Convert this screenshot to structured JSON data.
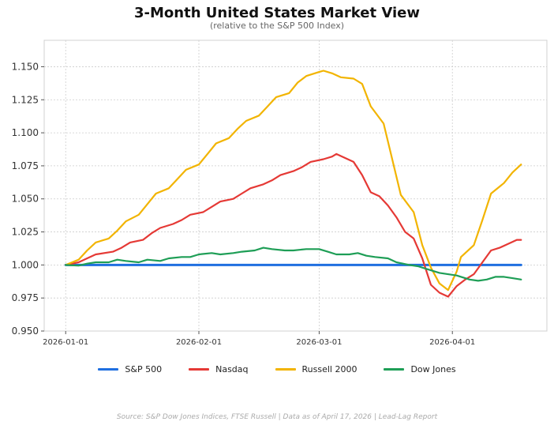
{
  "chart_data": {
    "type": "line",
    "title": "3-Month United States Market View",
    "subtitle": "(relative to the S&P 500 Index)",
    "xlabel": "",
    "ylabel": "",
    "x_start": "2026-01-01",
    "x_end": "2026-04-17",
    "xlim": [
      "2025-12-27",
      "2026-04-23"
    ],
    "ylim": [
      0.95,
      1.17
    ],
    "x_ticks": [
      "2026-01-01",
      "2026-02-01",
      "2026-03-01",
      "2026-04-01"
    ],
    "y_ticks": [
      0.95,
      0.975,
      1.0,
      1.025,
      1.05,
      1.075,
      1.1,
      1.125,
      1.15
    ],
    "y_tick_labels": [
      "0.950",
      "0.975",
      "1.000",
      "1.025",
      "1.050",
      "1.075",
      "1.100",
      "1.125",
      "1.150"
    ],
    "grid": true,
    "legend_position": "bottom-center",
    "series": [
      {
        "name": "S&P 500",
        "color": "#1f6fe0",
        "points": [
          [
            "2026-01-01",
            1.0
          ],
          [
            "2026-04-17",
            1.0
          ]
        ]
      },
      {
        "name": "Nasdaq",
        "color": "#e53935",
        "points": [
          [
            "2026-01-01",
            1.0
          ],
          [
            "2026-01-04",
            1.002
          ],
          [
            "2026-01-06",
            1.005
          ],
          [
            "2026-01-08",
            1.008
          ],
          [
            "2026-01-12",
            1.01
          ],
          [
            "2026-01-14",
            1.013
          ],
          [
            "2026-01-16",
            1.017
          ],
          [
            "2026-01-19",
            1.019
          ],
          [
            "2026-01-21",
            1.024
          ],
          [
            "2026-01-23",
            1.028
          ],
          [
            "2026-01-26",
            1.031
          ],
          [
            "2026-01-28",
            1.034
          ],
          [
            "2026-01-30",
            1.038
          ],
          [
            "2026-02-02",
            1.04
          ],
          [
            "2026-02-04",
            1.044
          ],
          [
            "2026-02-06",
            1.048
          ],
          [
            "2026-02-09",
            1.05
          ],
          [
            "2026-02-11",
            1.054
          ],
          [
            "2026-02-13",
            1.058
          ],
          [
            "2026-02-16",
            1.061
          ],
          [
            "2026-02-18",
            1.064
          ],
          [
            "2026-02-20",
            1.068
          ],
          [
            "2026-02-23",
            1.071
          ],
          [
            "2026-02-25",
            1.074
          ],
          [
            "2026-02-27",
            1.078
          ],
          [
            "2026-03-02",
            1.08
          ],
          [
            "2026-03-04",
            1.082
          ],
          [
            "2026-03-05",
            1.084
          ],
          [
            "2026-03-07",
            1.081
          ],
          [
            "2026-03-09",
            1.078
          ],
          [
            "2026-03-11",
            1.068
          ],
          [
            "2026-03-13",
            1.055
          ],
          [
            "2026-03-15",
            1.052
          ],
          [
            "2026-03-17",
            1.045
          ],
          [
            "2026-03-19",
            1.036
          ],
          [
            "2026-03-21",
            1.025
          ],
          [
            "2026-03-23",
            1.02
          ],
          [
            "2026-03-25",
            1.005
          ],
          [
            "2026-03-27",
            0.985
          ],
          [
            "2026-03-29",
            0.979
          ],
          [
            "2026-03-31",
            0.976
          ],
          [
            "2026-04-02",
            0.984
          ],
          [
            "2026-04-04",
            0.989
          ],
          [
            "2026-04-06",
            0.993
          ],
          [
            "2026-04-08",
            1.002
          ],
          [
            "2026-04-10",
            1.011
          ],
          [
            "2026-04-12",
            1.013
          ],
          [
            "2026-04-14",
            1.016
          ],
          [
            "2026-04-16",
            1.019
          ],
          [
            "2026-04-17",
            1.019
          ]
        ]
      },
      {
        "name": "Russell 2000",
        "color": "#f2b400",
        "points": [
          [
            "2026-01-01",
            1.0
          ],
          [
            "2026-01-04",
            1.004
          ],
          [
            "2026-01-06",
            1.011
          ],
          [
            "2026-01-08",
            1.017
          ],
          [
            "2026-01-11",
            1.02
          ],
          [
            "2026-01-13",
            1.026
          ],
          [
            "2026-01-15",
            1.033
          ],
          [
            "2026-01-18",
            1.038
          ],
          [
            "2026-01-20",
            1.046
          ],
          [
            "2026-01-22",
            1.054
          ],
          [
            "2026-01-25",
            1.058
          ],
          [
            "2026-01-27",
            1.065
          ],
          [
            "2026-01-29",
            1.072
          ],
          [
            "2026-02-01",
            1.076
          ],
          [
            "2026-02-03",
            1.084
          ],
          [
            "2026-02-05",
            1.092
          ],
          [
            "2026-02-08",
            1.096
          ],
          [
            "2026-02-10",
            1.103
          ],
          [
            "2026-02-12",
            1.109
          ],
          [
            "2026-02-15",
            1.113
          ],
          [
            "2026-02-17",
            1.12
          ],
          [
            "2026-02-19",
            1.127
          ],
          [
            "2026-02-22",
            1.13
          ],
          [
            "2026-02-24",
            1.138
          ],
          [
            "2026-02-26",
            1.143
          ],
          [
            "2026-03-01",
            1.146
          ],
          [
            "2026-03-02",
            1.147
          ],
          [
            "2026-03-04",
            1.145
          ],
          [
            "2026-03-06",
            1.142
          ],
          [
            "2026-03-09",
            1.141
          ],
          [
            "2026-03-11",
            1.137
          ],
          [
            "2026-03-13",
            1.12
          ],
          [
            "2026-03-16",
            1.107
          ],
          [
            "2026-03-18",
            1.08
          ],
          [
            "2026-03-20",
            1.053
          ],
          [
            "2026-03-23",
            1.04
          ],
          [
            "2026-03-25",
            1.015
          ],
          [
            "2026-03-27",
            0.998
          ],
          [
            "2026-03-29",
            0.986
          ],
          [
            "2026-03-31",
            0.981
          ],
          [
            "2026-04-02",
            0.995
          ],
          [
            "2026-04-03",
            1.006
          ],
          [
            "2026-04-06",
            1.015
          ],
          [
            "2026-04-08",
            1.034
          ],
          [
            "2026-04-10",
            1.054
          ],
          [
            "2026-04-13",
            1.062
          ],
          [
            "2026-04-15",
            1.07
          ],
          [
            "2026-04-17",
            1.076
          ]
        ]
      },
      {
        "name": "Dow Jones",
        "color": "#1e9e56",
        "points": [
          [
            "2026-01-01",
            1.0
          ],
          [
            "2026-01-04",
            0.9995
          ],
          [
            "2026-01-06",
            1.001
          ],
          [
            "2026-01-08",
            1.002
          ],
          [
            "2026-01-11",
            1.002
          ],
          [
            "2026-01-13",
            1.004
          ],
          [
            "2026-01-15",
            1.003
          ],
          [
            "2026-01-18",
            1.002
          ],
          [
            "2026-01-20",
            1.004
          ],
          [
            "2026-01-23",
            1.003
          ],
          [
            "2026-01-25",
            1.005
          ],
          [
            "2026-01-28",
            1.006
          ],
          [
            "2026-01-30",
            1.006
          ],
          [
            "2026-02-01",
            1.008
          ],
          [
            "2026-02-04",
            1.009
          ],
          [
            "2026-02-06",
            1.008
          ],
          [
            "2026-02-09",
            1.009
          ],
          [
            "2026-02-11",
            1.01
          ],
          [
            "2026-02-14",
            1.011
          ],
          [
            "2026-02-16",
            1.013
          ],
          [
            "2026-02-18",
            1.012
          ],
          [
            "2026-02-21",
            1.011
          ],
          [
            "2026-02-23",
            1.011
          ],
          [
            "2026-02-26",
            1.012
          ],
          [
            "2026-03-01",
            1.012
          ],
          [
            "2026-03-03",
            1.01
          ],
          [
            "2026-03-05",
            1.008
          ],
          [
            "2026-03-08",
            1.008
          ],
          [
            "2026-03-10",
            1.009
          ],
          [
            "2026-03-12",
            1.007
          ],
          [
            "2026-03-14",
            1.006
          ],
          [
            "2026-03-17",
            1.005
          ],
          [
            "2026-03-19",
            1.002
          ],
          [
            "2026-03-22",
            1.0
          ],
          [
            "2026-03-24",
            0.999
          ],
          [
            "2026-03-26",
            0.997
          ],
          [
            "2026-03-29",
            0.994
          ],
          [
            "2026-03-31",
            0.993
          ],
          [
            "2026-04-02",
            0.992
          ],
          [
            "2026-04-05",
            0.989
          ],
          [
            "2026-04-07",
            0.988
          ],
          [
            "2026-04-09",
            0.989
          ],
          [
            "2026-04-11",
            0.991
          ],
          [
            "2026-04-13",
            0.991
          ],
          [
            "2026-04-15",
            0.99
          ],
          [
            "2026-04-17",
            0.989
          ]
        ]
      }
    ],
    "source_note": "Source: S&P Dow Jones Indices, FTSE Russell  |  Data as of April 17, 2026  |  Lead-Lag Report"
  }
}
